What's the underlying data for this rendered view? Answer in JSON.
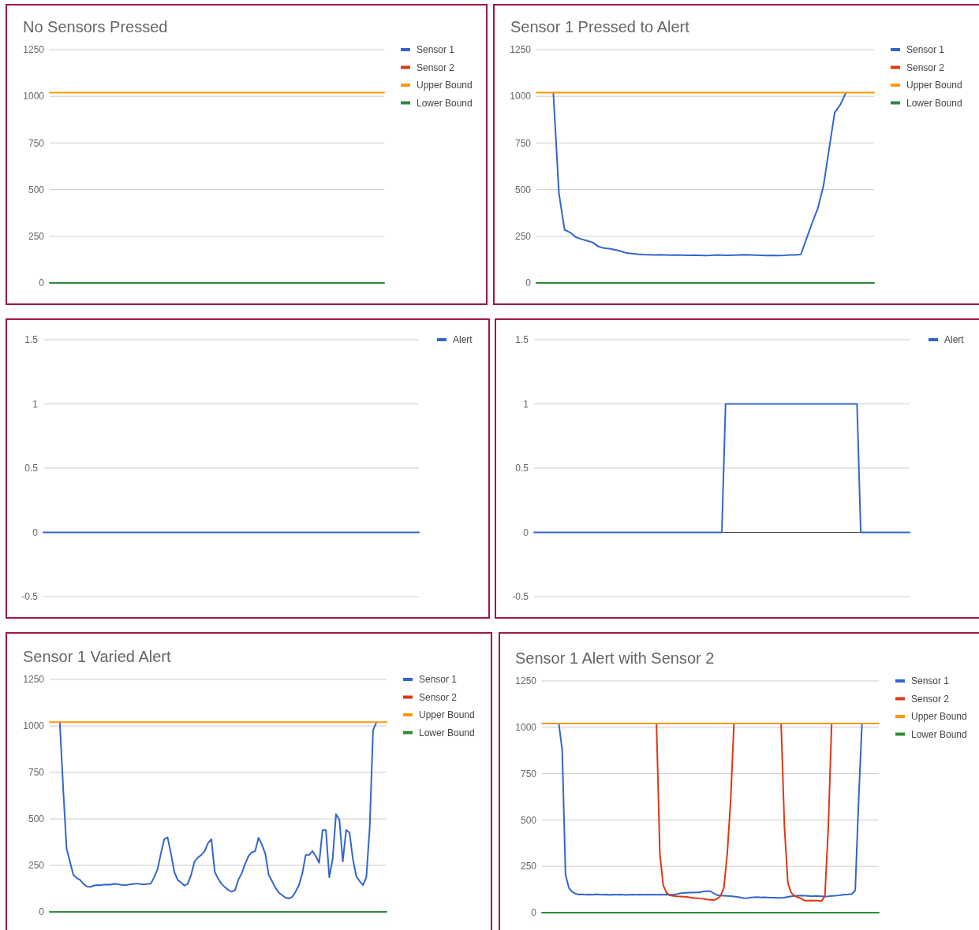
{
  "chart_data": [
    {
      "type": "line",
      "title": "No Sensors Pressed",
      "categories": [
        null,
        null,
        null,
        null,
        null,
        null,
        null,
        null,
        null,
        null,
        null,
        null,
        null,
        null,
        null,
        null,
        null,
        null,
        null,
        null,
        null
      ],
      "ylim": [
        0,
        1250
      ],
      "yticks": [
        0,
        250,
        500,
        750,
        1000,
        1250
      ],
      "grid": "y",
      "legend": "right",
      "series": [
        {
          "name": "Sensor 1",
          "color": "#3366cc",
          "values": [
            null,
            null,
            null,
            null,
            null,
            null,
            null,
            null,
            null,
            null,
            null,
            null,
            null,
            null,
            null,
            null,
            null,
            null,
            null,
            null,
            null
          ]
        },
        {
          "name": "Sensor 2",
          "color": "#dc3912",
          "values": [
            null,
            null,
            null,
            null,
            null,
            null,
            null,
            null,
            null,
            null,
            null,
            null,
            null,
            null,
            null,
            null,
            null,
            null,
            null,
            null,
            null
          ]
        },
        {
          "name": "Upper Bound",
          "color": "#ff9900",
          "values": [
            1020,
            1020,
            1020,
            1020,
            1020,
            1020,
            1020,
            1020,
            1020,
            1020,
            1020,
            1020,
            1020,
            1020,
            1020,
            1020,
            1020,
            1020,
            1020,
            1020,
            1020
          ]
        },
        {
          "name": "Lower Bound",
          "color": "#2e8b3a",
          "values": [
            0,
            0,
            0,
            0,
            0,
            0,
            0,
            0,
            0,
            0,
            0,
            0,
            0,
            0,
            0,
            0,
            0,
            0,
            0,
            0,
            0
          ]
        }
      ]
    },
    {
      "type": "line",
      "title": "Sensor 1 Pressed to Alert",
      "categories": [
        null,
        null,
        null,
        null,
        null,
        null,
        null,
        null,
        null,
        null,
        null,
        null,
        null,
        null,
        null,
        null,
        null,
        null,
        null,
        null,
        null,
        null,
        null,
        null,
        null,
        null,
        null,
        null,
        null,
        null,
        null,
        null,
        null,
        null,
        null,
        null,
        null,
        null,
        null,
        null,
        null,
        null,
        null,
        null,
        null,
        null,
        null,
        null,
        null,
        null,
        null,
        null,
        null,
        null,
        null,
        null,
        null,
        null,
        null,
        null,
        null
      ],
      "ylim": [
        0,
        1250
      ],
      "yticks": [
        0,
        250,
        500,
        750,
        1000,
        1250
      ],
      "grid": "y",
      "legend": "right",
      "series": [
        {
          "name": "Sensor 1",
          "color": "#3366cc",
          "values": [
            null,
            null,
            null,
            1020,
            480,
            285,
            270,
            245,
            235,
            226,
            217,
            195,
            187,
            184,
            177,
            170,
            160,
            157,
            154,
            152,
            151,
            150,
            151,
            150,
            149,
            150,
            149,
            148,
            149,
            148,
            147,
            148,
            150,
            149,
            148,
            149,
            150,
            151,
            150,
            149,
            148,
            147,
            148,
            147,
            148,
            150,
            150,
            153,
            238,
            322,
            400,
            519,
            716,
            913,
            955,
            1020,
            null,
            null,
            null,
            null,
            null
          ]
        },
        {
          "name": "Sensor 2",
          "color": "#dc3912",
          "values": [
            null,
            null,
            null,
            null,
            null,
            null,
            null,
            null,
            null,
            null,
            null,
            null,
            null,
            null,
            null,
            null,
            null,
            null,
            null,
            null,
            null,
            null,
            null,
            null,
            null,
            null,
            null,
            null,
            null,
            null,
            null,
            null,
            null,
            null,
            null,
            null,
            null,
            null,
            null,
            null,
            null,
            null,
            null,
            null,
            null,
            null,
            null,
            null,
            null,
            null,
            null,
            null,
            null,
            null,
            null,
            null,
            null,
            null,
            null,
            null,
            null
          ]
        },
        {
          "name": "Upper Bound",
          "color": "#ff9900",
          "values": [
            1020,
            1020,
            1020,
            1020,
            1020,
            1020,
            1020,
            1020,
            1020,
            1020,
            1020,
            1020,
            1020,
            1020,
            1020,
            1020,
            1020,
            1020,
            1020,
            1020,
            1020,
            1020,
            1020,
            1020,
            1020,
            1020,
            1020,
            1020,
            1020,
            1020,
            1020,
            1020,
            1020,
            1020,
            1020,
            1020,
            1020,
            1020,
            1020,
            1020,
            1020,
            1020,
            1020,
            1020,
            1020,
            1020,
            1020,
            1020,
            1020,
            1020,
            1020,
            1020,
            1020,
            1020,
            1020,
            1020,
            1020,
            1020,
            1020,
            1020,
            1020
          ]
        },
        {
          "name": "Lower Bound",
          "color": "#2e8b3a",
          "values": [
            0,
            0,
            0,
            0,
            0,
            0,
            0,
            0,
            0,
            0,
            0,
            0,
            0,
            0,
            0,
            0,
            0,
            0,
            0,
            0,
            0,
            0,
            0,
            0,
            0,
            0,
            0,
            0,
            0,
            0,
            0,
            0,
            0,
            0,
            0,
            0,
            0,
            0,
            0,
            0,
            0,
            0,
            0,
            0,
            0,
            0,
            0,
            0,
            0,
            0,
            0,
            0,
            0,
            0,
            0,
            0,
            0,
            0,
            0,
            0,
            0
          ]
        }
      ]
    },
    {
      "type": "line",
      "categories": [
        null,
        null,
        null,
        null,
        null,
        null,
        null,
        null,
        null,
        null,
        null,
        null,
        null,
        null,
        null,
        null,
        null,
        null,
        null,
        null,
        null
      ],
      "ylim": [
        -0.5,
        1.5
      ],
      "yticks": [
        -0.5,
        0,
        0.5,
        1,
        1.5
      ],
      "grid": "y",
      "legend": "right",
      "series": [
        {
          "name": "Alert",
          "color": "#3366cc",
          "values": [
            0,
            0,
            0,
            0,
            0,
            0,
            0,
            0,
            0,
            0,
            0,
            0,
            0,
            0,
            0,
            0,
            0,
            0,
            0,
            0,
            0
          ]
        }
      ]
    },
    {
      "type": "line",
      "categories": [
        null,
        null,
        null,
        null,
        null,
        null,
        null,
        null,
        null,
        null,
        null,
        null,
        null,
        null,
        null,
        null,
        null,
        null,
        null,
        null,
        null,
        null,
        null,
        null,
        null,
        null,
        null,
        null,
        null,
        null,
        null,
        null,
        null,
        null,
        null,
        null,
        null,
        null,
        null,
        null,
        null,
        null,
        null,
        null,
        null,
        null,
        null,
        null,
        null,
        null,
        null,
        null,
        null,
        null,
        null,
        null,
        null,
        null,
        null,
        null,
        null,
        null,
        null,
        null,
        null,
        null,
        null,
        null,
        null,
        null,
        null,
        null,
        null,
        null,
        null,
        null,
        null,
        null,
        null,
        null,
        null,
        null,
        null,
        null,
        null,
        null,
        null,
        null,
        null,
        null,
        null,
        null,
        null,
        null,
        null,
        null,
        null,
        null,
        null,
        null,
        null
      ],
      "ylim": [
        -0.5,
        1.5
      ],
      "yticks": [
        -0.5,
        0,
        0.5,
        1,
        1.5
      ],
      "grid": "y",
      "legend": "right",
      "series": [
        {
          "name": "Alert",
          "color": "#3366cc",
          "values": [
            0,
            0,
            0,
            0,
            0,
            0,
            0,
            0,
            0,
            0,
            0,
            0,
            0,
            0,
            0,
            0,
            0,
            0,
            0,
            0,
            0,
            0,
            0,
            0,
            0,
            0,
            0,
            0,
            0,
            0,
            0,
            0,
            0,
            0,
            0,
            0,
            0,
            0,
            0,
            0,
            0,
            0,
            0,
            0,
            0,
            0,
            0,
            0,
            0,
            0,
            0,
            1,
            1,
            1,
            1,
            1,
            1,
            1,
            1,
            1,
            1,
            1,
            1,
            1,
            1,
            1,
            1,
            1,
            1,
            1,
            1,
            1,
            1,
            1,
            1,
            1,
            1,
            1,
            1,
            1,
            1,
            1,
            1,
            1,
            1,
            1,
            1,
            0,
            0,
            0,
            0,
            0,
            0,
            0,
            0,
            0,
            0,
            0,
            0,
            0,
            0
          ]
        }
      ]
    },
    {
      "type": "line",
      "title": "Sensor 1 Varied Alert",
      "categories": [
        null,
        null,
        null,
        null,
        null,
        null,
        null,
        null,
        null,
        null,
        null,
        null,
        null,
        null,
        null,
        null,
        null,
        null,
        null,
        null,
        null,
        null,
        null,
        null,
        null,
        null,
        null,
        null,
        null,
        null,
        null,
        null,
        null,
        null,
        null,
        null,
        null,
        null,
        null,
        null,
        null,
        null,
        null,
        null,
        null,
        null,
        null,
        null,
        null,
        null,
        null,
        null,
        null,
        null,
        null,
        null,
        null,
        null,
        null,
        null,
        null,
        null,
        null,
        null,
        null,
        null,
        null,
        null,
        null,
        null,
        null,
        null,
        null,
        null,
        null,
        null,
        null,
        null,
        null,
        null,
        null,
        null,
        null,
        null,
        null,
        null,
        null,
        null,
        null,
        null,
        null,
        null,
        null,
        null,
        null,
        null,
        null,
        null,
        null,
        null,
        null
      ],
      "ylim": [
        0,
        1250
      ],
      "yticks": [
        0,
        250,
        500,
        750,
        1000,
        1250
      ],
      "grid": "y",
      "legend": "right",
      "series": [
        {
          "name": "Sensor 1",
          "color": "#3366cc",
          "values": [
            null,
            null,
            null,
            1020,
            666,
            341,
            271,
            200,
            182,
            172,
            151,
            137,
            134,
            141,
            144,
            143,
            146,
            147,
            146,
            150,
            149,
            146,
            144,
            145,
            148,
            150,
            152,
            149,
            147,
            150,
            151,
            186,
            228,
            313,
            391,
            400,
            313,
            214,
            172,
            158,
            141,
            151,
            200,
            271,
            292,
            306,
            327,
            369,
            391,
            214,
            179,
            151,
            133,
            118,
            109,
            116,
            172,
            207,
            257,
            299,
            320,
            327,
            398,
            362,
            313,
            200,
            165,
            130,
            104,
            90,
            76,
            72,
            80,
            109,
            144,
            207,
            306,
            306,
            327,
            299,
            264,
            440,
            440,
            186,
            285,
            525,
            496,
            271,
            440,
            426,
            285,
            193,
            165,
            144,
            186,
            454,
            976,
            1020,
            null,
            null,
            null
          ]
        },
        {
          "name": "Sensor 2",
          "color": "#dc3912",
          "values": [
            null,
            null,
            null,
            null,
            null,
            null,
            null,
            null,
            null,
            null,
            null,
            null,
            null,
            null,
            null,
            null,
            null,
            null,
            null,
            null,
            null,
            null,
            null,
            null,
            null,
            null,
            null,
            null,
            null,
            null,
            null,
            null,
            null,
            null,
            null,
            null,
            null,
            null,
            null,
            null,
            null,
            null,
            null,
            null,
            null,
            null,
            null,
            null,
            null,
            null,
            null,
            null,
            null,
            null,
            null,
            null,
            null,
            null,
            null,
            null,
            null,
            null,
            null,
            null,
            null,
            null,
            null,
            null,
            null,
            null,
            null,
            null,
            null,
            null,
            null,
            null,
            null,
            null,
            null,
            null,
            null,
            null,
            null,
            null,
            null,
            null,
            null,
            null,
            null,
            null,
            null,
            null,
            null,
            null,
            null,
            null,
            null,
            null,
            null,
            null,
            null
          ]
        },
        {
          "name": "Upper Bound",
          "color": "#ff9900",
          "values": [
            1020,
            1020,
            1020,
            1020,
            1020,
            1020,
            1020,
            1020,
            1020,
            1020,
            1020,
            1020,
            1020,
            1020,
            1020,
            1020,
            1020,
            1020,
            1020,
            1020,
            1020,
            1020,
            1020,
            1020,
            1020,
            1020,
            1020,
            1020,
            1020,
            1020,
            1020,
            1020,
            1020,
            1020,
            1020,
            1020,
            1020,
            1020,
            1020,
            1020,
            1020,
            1020,
            1020,
            1020,
            1020,
            1020,
            1020,
            1020,
            1020,
            1020,
            1020,
            1020,
            1020,
            1020,
            1020,
            1020,
            1020,
            1020,
            1020,
            1020,
            1020,
            1020,
            1020,
            1020,
            1020,
            1020,
            1020,
            1020,
            1020,
            1020,
            1020,
            1020,
            1020,
            1020,
            1020,
            1020,
            1020,
            1020,
            1020,
            1020,
            1020,
            1020,
            1020,
            1020,
            1020,
            1020,
            1020,
            1020,
            1020,
            1020,
            1020,
            1020,
            1020,
            1020,
            1020,
            1020,
            1020,
            1020,
            1020,
            1020,
            1020
          ]
        },
        {
          "name": "Lower Bound",
          "color": "#2e8b3a",
          "values": [
            0,
            0,
            0,
            0,
            0,
            0,
            0,
            0,
            0,
            0,
            0,
            0,
            0,
            0,
            0,
            0,
            0,
            0,
            0,
            0,
            0,
            0,
            0,
            0,
            0,
            0,
            0,
            0,
            0,
            0,
            0,
            0,
            0,
            0,
            0,
            0,
            0,
            0,
            0,
            0,
            0,
            0,
            0,
            0,
            0,
            0,
            0,
            0,
            0,
            0,
            0,
            0,
            0,
            0,
            0,
            0,
            0,
            0,
            0,
            0,
            0,
            0,
            0,
            0,
            0,
            0,
            0,
            0,
            0,
            0,
            0,
            0,
            0,
            0,
            0,
            0,
            0,
            0,
            0,
            0,
            0,
            0,
            0,
            0,
            0,
            0,
            0,
            0,
            0,
            0,
            0,
            0,
            0,
            0,
            0,
            0,
            0,
            0,
            0,
            0,
            0
          ]
        }
      ]
    },
    {
      "type": "line",
      "title": "Sensor 1 Alert with Sensor 2",
      "categories": [
        null,
        null,
        null,
        null,
        null,
        null,
        null,
        null,
        null,
        null,
        null,
        null,
        null,
        null,
        null,
        null,
        null,
        null,
        null,
        null,
        null,
        null,
        null,
        null,
        null,
        null,
        null,
        null,
        null,
        null,
        null,
        null,
        null,
        null,
        null,
        null,
        null,
        null,
        null,
        null,
        null,
        null,
        null,
        null,
        null,
        null,
        null,
        null,
        null,
        null,
        null,
        null,
        null,
        null,
        null,
        null,
        null,
        null,
        null,
        null,
        null,
        null,
        null,
        null,
        null,
        null,
        null,
        null,
        null,
        null,
        null,
        null,
        null,
        null,
        null,
        null,
        null,
        null,
        null,
        null,
        null,
        null,
        null,
        null,
        null,
        null,
        null,
        null,
        null,
        null,
        null,
        null,
        null,
        null,
        null,
        null,
        null,
        null,
        null,
        null,
        null
      ],
      "ylim": [
        0,
        1250
      ],
      "yticks": [
        0,
        250,
        500,
        750,
        1000,
        1250
      ],
      "grid": "y",
      "legend": "right",
      "series": [
        {
          "name": "Sensor 1",
          "color": "#3366cc",
          "values": [
            null,
            null,
            null,
            null,
            null,
            1020,
            880,
            204,
            133,
            112,
            102,
            98,
            99,
            97,
            98,
            97,
            99,
            98,
            97,
            98,
            96,
            98,
            97,
            98,
            97,
            96,
            97,
            98,
            97,
            98,
            97,
            98,
            97,
            98,
            97,
            98,
            97,
            98,
            97,
            98,
            100,
            104,
            106,
            107,
            108,
            108,
            109,
            110,
            115,
            116,
            116,
            104,
            95,
            92,
            91,
            90,
            89,
            87,
            85,
            82,
            78,
            79,
            82,
            83,
            84,
            82,
            83,
            82,
            81,
            81,
            80,
            80,
            82,
            85,
            88,
            90,
            91,
            92,
            91,
            90,
            88,
            90,
            89,
            88,
            87,
            88,
            90,
            91,
            93,
            96,
            98,
            99,
            101,
            119,
            600,
            1020,
            null,
            null,
            null,
            null,
            null
          ]
        },
        {
          "name": "Sensor 2",
          "color": "#dc3912",
          "values": [
            null,
            null,
            null,
            null,
            null,
            null,
            null,
            null,
            null,
            null,
            null,
            null,
            null,
            null,
            null,
            null,
            null,
            null,
            null,
            null,
            null,
            null,
            null,
            null,
            null,
            null,
            null,
            null,
            null,
            null,
            null,
            null,
            null,
            null,
            1020,
            317,
            147,
            107,
            93,
            90,
            88,
            87,
            86,
            85,
            82,
            79,
            79,
            76,
            74,
            71,
            69,
            68,
            74,
            90,
            133,
            317,
            600,
            1020,
            null,
            null,
            null,
            null,
            null,
            null,
            null,
            null,
            null,
            null,
            null,
            null,
            null,
            1020,
            458,
            161,
            107,
            90,
            83,
            76,
            65,
            65,
            66,
            65,
            65,
            62,
            90,
            458,
            1020,
            null,
            null,
            null,
            null,
            null,
            null,
            null,
            null,
            null,
            null,
            null,
            null,
            null,
            null
          ]
        },
        {
          "name": "Upper Bound",
          "color": "#ff9900",
          "values": [
            1020,
            1020,
            1020,
            1020,
            1020,
            1020,
            1020,
            1020,
            1020,
            1020,
            1020,
            1020,
            1020,
            1020,
            1020,
            1020,
            1020,
            1020,
            1020,
            1020,
            1020,
            1020,
            1020,
            1020,
            1020,
            1020,
            1020,
            1020,
            1020,
            1020,
            1020,
            1020,
            1020,
            1020,
            1020,
            1020,
            1020,
            1020,
            1020,
            1020,
            1020,
            1020,
            1020,
            1020,
            1020,
            1020,
            1020,
            1020,
            1020,
            1020,
            1020,
            1020,
            1020,
            1020,
            1020,
            1020,
            1020,
            1020,
            1020,
            1020,
            1020,
            1020,
            1020,
            1020,
            1020,
            1020,
            1020,
            1020,
            1020,
            1020,
            1020,
            1020,
            1020,
            1020,
            1020,
            1020,
            1020,
            1020,
            1020,
            1020,
            1020,
            1020,
            1020,
            1020,
            1020,
            1020,
            1020,
            1020,
            1020,
            1020,
            1020,
            1020,
            1020,
            1020,
            1020,
            1020,
            1020,
            1020,
            1020,
            1020,
            1020
          ]
        },
        {
          "name": "Lower Bound",
          "color": "#2e8b3a",
          "values": [
            0,
            0,
            0,
            0,
            0,
            0,
            0,
            0,
            0,
            0,
            0,
            0,
            0,
            0,
            0,
            0,
            0,
            0,
            0,
            0,
            0,
            0,
            0,
            0,
            0,
            0,
            0,
            0,
            0,
            0,
            0,
            0,
            0,
            0,
            0,
            0,
            0,
            0,
            0,
            0,
            0,
            0,
            0,
            0,
            0,
            0,
            0,
            0,
            0,
            0,
            0,
            0,
            0,
            0,
            0,
            0,
            0,
            0,
            0,
            0,
            0,
            0,
            0,
            0,
            0,
            0,
            0,
            0,
            0,
            0,
            0,
            0,
            0,
            0,
            0,
            0,
            0,
            0,
            0,
            0,
            0,
            0,
            0,
            0,
            0,
            0,
            0,
            0,
            0,
            0,
            0,
            0,
            0,
            0,
            0,
            0,
            0,
            0,
            0,
            0,
            0
          ]
        }
      ]
    }
  ]
}
